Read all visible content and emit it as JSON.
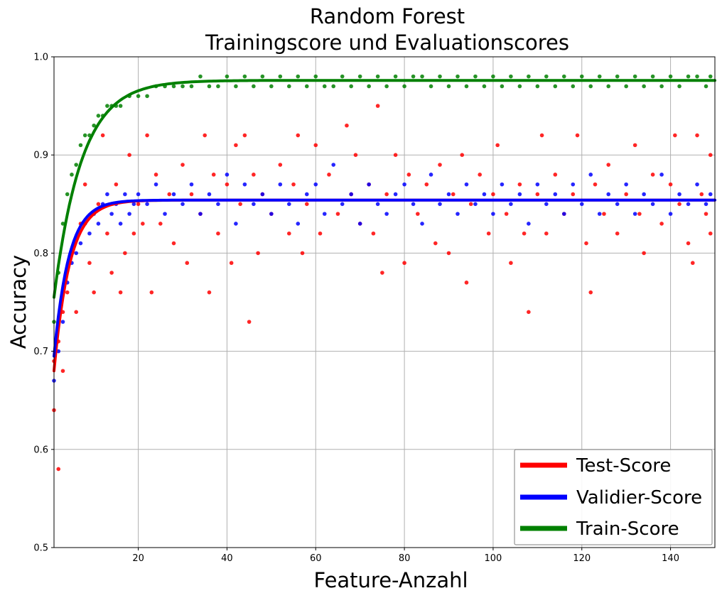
{
  "chart_data": {
    "type": "scatter",
    "title": "Random Forest",
    "subtitle": "Trainingscore und Evaluationscores",
    "xlabel": "Feature-Anzahl",
    "ylabel": "Accuracy",
    "xlim": [
      1,
      150
    ],
    "ylim": [
      0.5,
      1.0
    ],
    "x_ticks": [
      20,
      40,
      60,
      80,
      100,
      120,
      140
    ],
    "y_ticks": [
      0.5,
      0.6,
      0.7,
      0.8,
      0.9,
      1.0
    ],
    "x_tick_labels": [
      "20",
      "40",
      "60",
      "80",
      "100",
      "120",
      "140"
    ],
    "y_tick_labels": [
      "0.5",
      "0.6",
      "0.7",
      "0.8",
      "0.9",
      "1.0"
    ],
    "grid": true,
    "legend_position": "bottom-right",
    "series": [
      {
        "name": "Test-Score",
        "color": "#ff0000",
        "fit": {
          "start": 0.68,
          "plateau": 0.854,
          "rate": 0.28
        },
        "points": [
          [
            1,
            0.64
          ],
          [
            1,
            0.69
          ],
          [
            2,
            0.58
          ],
          [
            2,
            0.71
          ],
          [
            3,
            0.74
          ],
          [
            3,
            0.68
          ],
          [
            4,
            0.76
          ],
          [
            5,
            0.8
          ],
          [
            6,
            0.74
          ],
          [
            7,
            0.83
          ],
          [
            8,
            0.87
          ],
          [
            9,
            0.79
          ],
          [
            10,
            0.76
          ],
          [
            11,
            0.85
          ],
          [
            12,
            0.92
          ],
          [
            13,
            0.82
          ],
          [
            14,
            0.78
          ],
          [
            15,
            0.87
          ],
          [
            16,
            0.76
          ],
          [
            17,
            0.8
          ],
          [
            18,
            0.9
          ],
          [
            19,
            0.82
          ],
          [
            20,
            0.85
          ],
          [
            21,
            0.83
          ],
          [
            22,
            0.92
          ],
          [
            23,
            0.76
          ],
          [
            24,
            0.88
          ],
          [
            25,
            0.83
          ],
          [
            27,
            0.86
          ],
          [
            28,
            0.81
          ],
          [
            30,
            0.89
          ],
          [
            31,
            0.79
          ],
          [
            32,
            0.86
          ],
          [
            34,
            0.84
          ],
          [
            35,
            0.92
          ],
          [
            36,
            0.76
          ],
          [
            37,
            0.88
          ],
          [
            38,
            0.82
          ],
          [
            40,
            0.87
          ],
          [
            41,
            0.79
          ],
          [
            42,
            0.91
          ],
          [
            43,
            0.85
          ],
          [
            44,
            0.92
          ],
          [
            45,
            0.73
          ],
          [
            46,
            0.88
          ],
          [
            47,
            0.8
          ],
          [
            48,
            0.86
          ],
          [
            50,
            0.84
          ],
          [
            52,
            0.89
          ],
          [
            54,
            0.82
          ],
          [
            55,
            0.87
          ],
          [
            56,
            0.92
          ],
          [
            57,
            0.8
          ],
          [
            58,
            0.85
          ],
          [
            60,
            0.91
          ],
          [
            61,
            0.82
          ],
          [
            63,
            0.88
          ],
          [
            65,
            0.84
          ],
          [
            67,
            0.93
          ],
          [
            68,
            0.86
          ],
          [
            69,
            0.9
          ],
          [
            70,
            0.83
          ],
          [
            72,
            0.87
          ],
          [
            73,
            0.82
          ],
          [
            74,
            0.95
          ],
          [
            75,
            0.78
          ],
          [
            76,
            0.86
          ],
          [
            78,
            0.9
          ],
          [
            80,
            0.79
          ],
          [
            81,
            0.88
          ],
          [
            83,
            0.84
          ],
          [
            85,
            0.87
          ],
          [
            87,
            0.81
          ],
          [
            88,
            0.89
          ],
          [
            90,
            0.8
          ],
          [
            91,
            0.86
          ],
          [
            93,
            0.9
          ],
          [
            94,
            0.77
          ],
          [
            95,
            0.85
          ],
          [
            97,
            0.88
          ],
          [
            99,
            0.82
          ],
          [
            100,
            0.86
          ],
          [
            101,
            0.91
          ],
          [
            103,
            0.84
          ],
          [
            104,
            0.79
          ],
          [
            106,
            0.87
          ],
          [
            107,
            0.82
          ],
          [
            108,
            0.74
          ],
          [
            110,
            0.86
          ],
          [
            111,
            0.92
          ],
          [
            112,
            0.82
          ],
          [
            114,
            0.88
          ],
          [
            116,
            0.84
          ],
          [
            118,
            0.86
          ],
          [
            119,
            0.92
          ],
          [
            121,
            0.81
          ],
          [
            122,
            0.76
          ],
          [
            123,
            0.87
          ],
          [
            125,
            0.84
          ],
          [
            126,
            0.89
          ],
          [
            128,
            0.82
          ],
          [
            130,
            0.86
          ],
          [
            132,
            0.91
          ],
          [
            133,
            0.84
          ],
          [
            134,
            0.8
          ],
          [
            136,
            0.88
          ],
          [
            138,
            0.83
          ],
          [
            140,
            0.87
          ],
          [
            141,
            0.92
          ],
          [
            142,
            0.85
          ],
          [
            144,
            0.81
          ],
          [
            145,
            0.79
          ],
          [
            146,
            0.92
          ],
          [
            147,
            0.86
          ],
          [
            148,
            0.84
          ],
          [
            149,
            0.9
          ],
          [
            149,
            0.82
          ]
        ]
      },
      {
        "name": "Validier-Score",
        "color": "#0000ff",
        "fit": {
          "start": 0.695,
          "plateau": 0.854,
          "rate": 0.3
        },
        "points": [
          [
            1,
            0.67
          ],
          [
            2,
            0.7
          ],
          [
            3,
            0.73
          ],
          [
            4,
            0.77
          ],
          [
            5,
            0.79
          ],
          [
            6,
            0.8
          ],
          [
            7,
            0.81
          ],
          [
            8,
            0.83
          ],
          [
            9,
            0.82
          ],
          [
            10,
            0.84
          ],
          [
            11,
            0.83
          ],
          [
            12,
            0.85
          ],
          [
            13,
            0.86
          ],
          [
            14,
            0.84
          ],
          [
            15,
            0.85
          ],
          [
            16,
            0.83
          ],
          [
            17,
            0.86
          ],
          [
            18,
            0.84
          ],
          [
            19,
            0.85
          ],
          [
            20,
            0.86
          ],
          [
            22,
            0.85
          ],
          [
            24,
            0.87
          ],
          [
            26,
            0.84
          ],
          [
            28,
            0.86
          ],
          [
            30,
            0.85
          ],
          [
            32,
            0.87
          ],
          [
            34,
            0.84
          ],
          [
            36,
            0.86
          ],
          [
            38,
            0.85
          ],
          [
            40,
            0.88
          ],
          [
            42,
            0.83
          ],
          [
            44,
            0.87
          ],
          [
            46,
            0.85
          ],
          [
            48,
            0.86
          ],
          [
            50,
            0.84
          ],
          [
            52,
            0.87
          ],
          [
            54,
            0.85
          ],
          [
            56,
            0.83
          ],
          [
            58,
            0.86
          ],
          [
            60,
            0.87
          ],
          [
            62,
            0.84
          ],
          [
            64,
            0.89
          ],
          [
            66,
            0.85
          ],
          [
            68,
            0.86
          ],
          [
            70,
            0.83
          ],
          [
            72,
            0.87
          ],
          [
            74,
            0.85
          ],
          [
            76,
            0.84
          ],
          [
            78,
            0.86
          ],
          [
            80,
            0.87
          ],
          [
            82,
            0.85
          ],
          [
            84,
            0.83
          ],
          [
            86,
            0.88
          ],
          [
            88,
            0.85
          ],
          [
            90,
            0.86
          ],
          [
            92,
            0.84
          ],
          [
            94,
            0.87
          ],
          [
            96,
            0.85
          ],
          [
            98,
            0.86
          ],
          [
            100,
            0.84
          ],
          [
            102,
            0.87
          ],
          [
            104,
            0.85
          ],
          [
            106,
            0.86
          ],
          [
            108,
            0.83
          ],
          [
            110,
            0.87
          ],
          [
            112,
            0.85
          ],
          [
            114,
            0.86
          ],
          [
            116,
            0.84
          ],
          [
            118,
            0.87
          ],
          [
            120,
            0.85
          ],
          [
            122,
            0.88
          ],
          [
            124,
            0.84
          ],
          [
            126,
            0.86
          ],
          [
            128,
            0.85
          ],
          [
            130,
            0.87
          ],
          [
            132,
            0.84
          ],
          [
            134,
            0.86
          ],
          [
            136,
            0.85
          ],
          [
            138,
            0.88
          ],
          [
            140,
            0.84
          ],
          [
            142,
            0.86
          ],
          [
            144,
            0.85
          ],
          [
            146,
            0.87
          ],
          [
            148,
            0.85
          ],
          [
            149,
            0.86
          ]
        ]
      },
      {
        "name": "Train-Score",
        "color": "#008000",
        "fit": {
          "start": 0.755,
          "plateau": 0.976,
          "rate": 0.16
        },
        "points": [
          [
            1,
            0.73
          ],
          [
            2,
            0.78
          ],
          [
            3,
            0.83
          ],
          [
            4,
            0.86
          ],
          [
            5,
            0.88
          ],
          [
            6,
            0.89
          ],
          [
            7,
            0.91
          ],
          [
            8,
            0.92
          ],
          [
            9,
            0.92
          ],
          [
            10,
            0.93
          ],
          [
            11,
            0.94
          ],
          [
            12,
            0.94
          ],
          [
            13,
            0.95
          ],
          [
            14,
            0.95
          ],
          [
            15,
            0.95
          ],
          [
            16,
            0.95
          ],
          [
            18,
            0.96
          ],
          [
            20,
            0.96
          ],
          [
            22,
            0.96
          ],
          [
            24,
            0.97
          ],
          [
            26,
            0.97
          ],
          [
            28,
            0.97
          ],
          [
            30,
            0.97
          ],
          [
            32,
            0.97
          ],
          [
            34,
            0.98
          ],
          [
            36,
            0.97
          ],
          [
            38,
            0.97
          ],
          [
            40,
            0.98
          ],
          [
            42,
            0.97
          ],
          [
            44,
            0.98
          ],
          [
            46,
            0.97
          ],
          [
            48,
            0.98
          ],
          [
            50,
            0.97
          ],
          [
            52,
            0.98
          ],
          [
            54,
            0.97
          ],
          [
            56,
            0.98
          ],
          [
            58,
            0.97
          ],
          [
            60,
            0.98
          ],
          [
            62,
            0.97
          ],
          [
            64,
            0.97
          ],
          [
            66,
            0.98
          ],
          [
            68,
            0.97
          ],
          [
            70,
            0.98
          ],
          [
            72,
            0.97
          ],
          [
            74,
            0.98
          ],
          [
            76,
            0.97
          ],
          [
            78,
            0.98
          ],
          [
            80,
            0.97
          ],
          [
            82,
            0.98
          ],
          [
            84,
            0.98
          ],
          [
            86,
            0.97
          ],
          [
            88,
            0.98
          ],
          [
            90,
            0.97
          ],
          [
            92,
            0.98
          ],
          [
            94,
            0.97
          ],
          [
            96,
            0.98
          ],
          [
            98,
            0.97
          ],
          [
            100,
            0.98
          ],
          [
            102,
            0.97
          ],
          [
            104,
            0.98
          ],
          [
            106,
            0.97
          ],
          [
            108,
            0.98
          ],
          [
            110,
            0.97
          ],
          [
            112,
            0.98
          ],
          [
            114,
            0.97
          ],
          [
            116,
            0.98
          ],
          [
            118,
            0.97
          ],
          [
            120,
            0.98
          ],
          [
            122,
            0.97
          ],
          [
            124,
            0.98
          ],
          [
            126,
            0.97
          ],
          [
            128,
            0.98
          ],
          [
            130,
            0.97
          ],
          [
            132,
            0.98
          ],
          [
            134,
            0.97
          ],
          [
            136,
            0.98
          ],
          [
            138,
            0.97
          ],
          [
            140,
            0.98
          ],
          [
            142,
            0.97
          ],
          [
            144,
            0.98
          ],
          [
            146,
            0.98
          ],
          [
            148,
            0.97
          ],
          [
            149,
            0.98
          ]
        ]
      }
    ]
  }
}
